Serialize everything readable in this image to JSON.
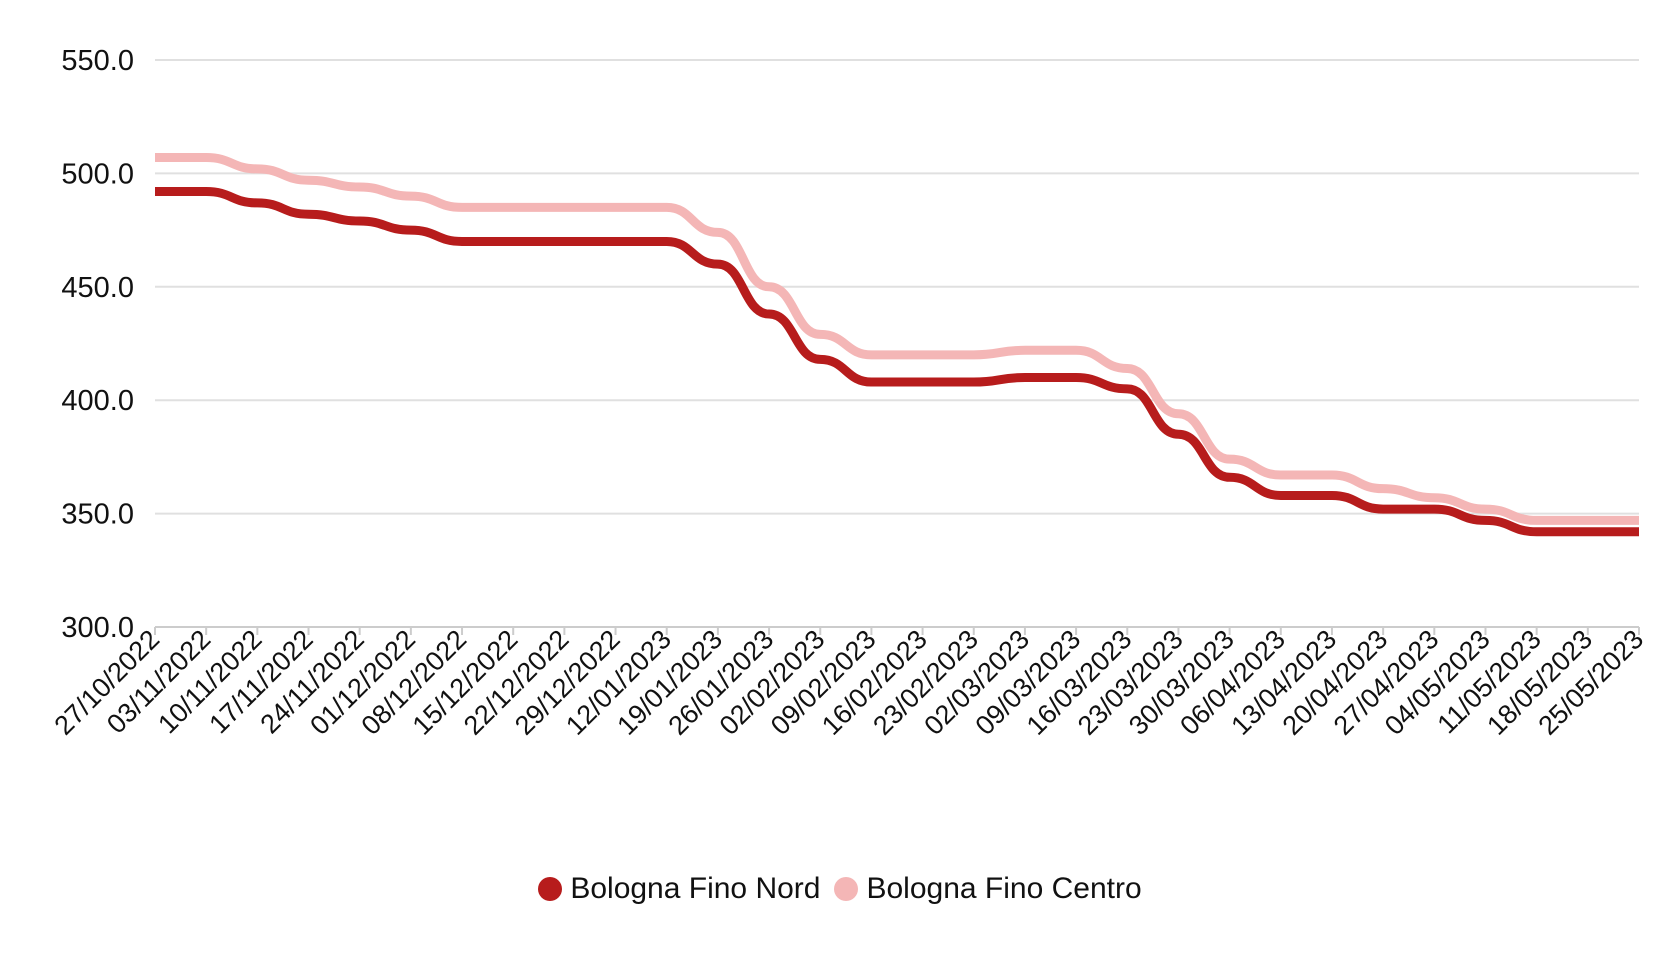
{
  "chart_data": {
    "type": "line",
    "title": "",
    "xlabel": "",
    "ylabel": "",
    "ylim": [
      300,
      550
    ],
    "yticks": [
      "300.0",
      "350.0",
      "400.0",
      "450.0",
      "500.0",
      "550.0"
    ],
    "grid": true,
    "legend_position": "bottom-center",
    "categories": [
      "27/10/2022",
      "03/11/2022",
      "10/11/2022",
      "17/11/2022",
      "24/11/2022",
      "01/12/2022",
      "08/12/2022",
      "15/12/2022",
      "22/12/2022",
      "29/12/2022",
      "12/01/2023",
      "19/01/2023",
      "26/01/2023",
      "02/02/2023",
      "09/02/2023",
      "16/02/2023",
      "23/02/2023",
      "02/03/2023",
      "09/03/2023",
      "16/03/2023",
      "23/03/2023",
      "30/03/2023",
      "06/04/2023",
      "13/04/2023",
      "20/04/2023",
      "27/04/2023",
      "04/05/2023",
      "11/05/2023",
      "18/05/2023",
      "25/05/2023"
    ],
    "series": [
      {
        "name": "Bologna Fino Nord",
        "color": "#b71c1c",
        "values": [
          492,
          492,
          487,
          482,
          479,
          475,
          470,
          470,
          470,
          470,
          470,
          460,
          438,
          418,
          408,
          408,
          408,
          410,
          410,
          405,
          385,
          366,
          358,
          358,
          352,
          352,
          347,
          342,
          342,
          342
        ]
      },
      {
        "name": "Bologna Fino Centro",
        "color": "#f4b6b6",
        "values": [
          507,
          507,
          502,
          497,
          494,
          490,
          485,
          485,
          485,
          485,
          485,
          474,
          450,
          429,
          420,
          420,
          420,
          422,
          422,
          414,
          394,
          374,
          367,
          367,
          361,
          357,
          352,
          347,
          347,
          347
        ]
      }
    ]
  }
}
